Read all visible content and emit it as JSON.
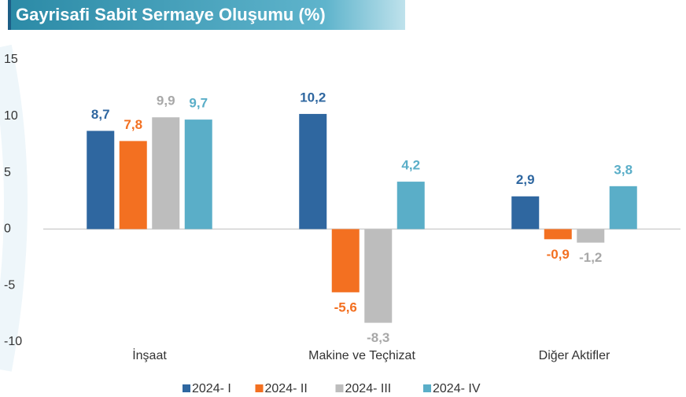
{
  "chart_data": {
    "type": "bar",
    "title": "Gayrisafi Sabit Sermaye Oluşumu (%)",
    "categories": [
      "İnşaat",
      "Makine ve Teçhizat",
      "Diğer Aktifler"
    ],
    "series": [
      {
        "name": "2024- I",
        "color": "#2f67a0",
        "values": [
          8.7,
          10.2,
          2.9
        ],
        "value_labels": [
          "8,7",
          "10,2",
          "2,9"
        ]
      },
      {
        "name": "2024- II",
        "color": "#f37021",
        "values": [
          7.8,
          -5.6,
          -0.9
        ],
        "value_labels": [
          "7,8",
          "-5,6",
          "-0,9"
        ]
      },
      {
        "name": "2024- III",
        "color": "#bdbdbd",
        "values": [
          9.9,
          -8.3,
          -1.2
        ],
        "value_labels": [
          "9,9",
          "-8,3",
          "-1,2"
        ]
      },
      {
        "name": "2024- IV",
        "color": "#5aaec8",
        "values": [
          9.7,
          4.2,
          3.8
        ],
        "value_labels": [
          "9,7",
          "4,2",
          "3,8"
        ]
      }
    ],
    "ylim": [
      -10,
      15
    ],
    "yticks": [
      -10,
      -5,
      0,
      5,
      10,
      15
    ],
    "grid": false,
    "legend": "bottom"
  }
}
